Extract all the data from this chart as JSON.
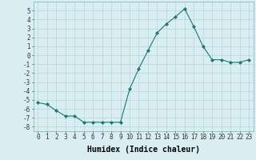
{
  "x": [
    0,
    1,
    2,
    3,
    4,
    5,
    6,
    7,
    8,
    9,
    10,
    11,
    12,
    13,
    14,
    15,
    16,
    17,
    18,
    19,
    20,
    21,
    22,
    23
  ],
  "y": [
    -5.3,
    -5.5,
    -6.2,
    -6.8,
    -6.8,
    -7.5,
    -7.5,
    -7.5,
    -7.5,
    -7.5,
    -3.8,
    -1.5,
    0.5,
    2.5,
    3.5,
    4.3,
    5.2,
    3.2,
    1.0,
    -0.5,
    -0.5,
    -0.8,
    -0.8,
    -0.5
  ],
  "xlabel": "Humidex (Indice chaleur)",
  "ylabel": "",
  "xlim": [
    -0.5,
    23.5
  ],
  "ylim": [
    -8.5,
    6.0
  ],
  "yticks": [
    -8,
    -7,
    -6,
    -5,
    -4,
    -3,
    -2,
    -1,
    0,
    1,
    2,
    3,
    4,
    5
  ],
  "xticks": [
    0,
    1,
    2,
    3,
    4,
    5,
    6,
    7,
    8,
    9,
    10,
    11,
    12,
    13,
    14,
    15,
    16,
    17,
    18,
    19,
    20,
    21,
    22,
    23
  ],
  "line_color": "#1a7a6e",
  "marker": "D",
  "marker_size": 2.0,
  "bg_color": "#d9eef2",
  "grid_color": "#b8d4d8",
  "label_fontsize": 7,
  "tick_fontsize": 5.5
}
